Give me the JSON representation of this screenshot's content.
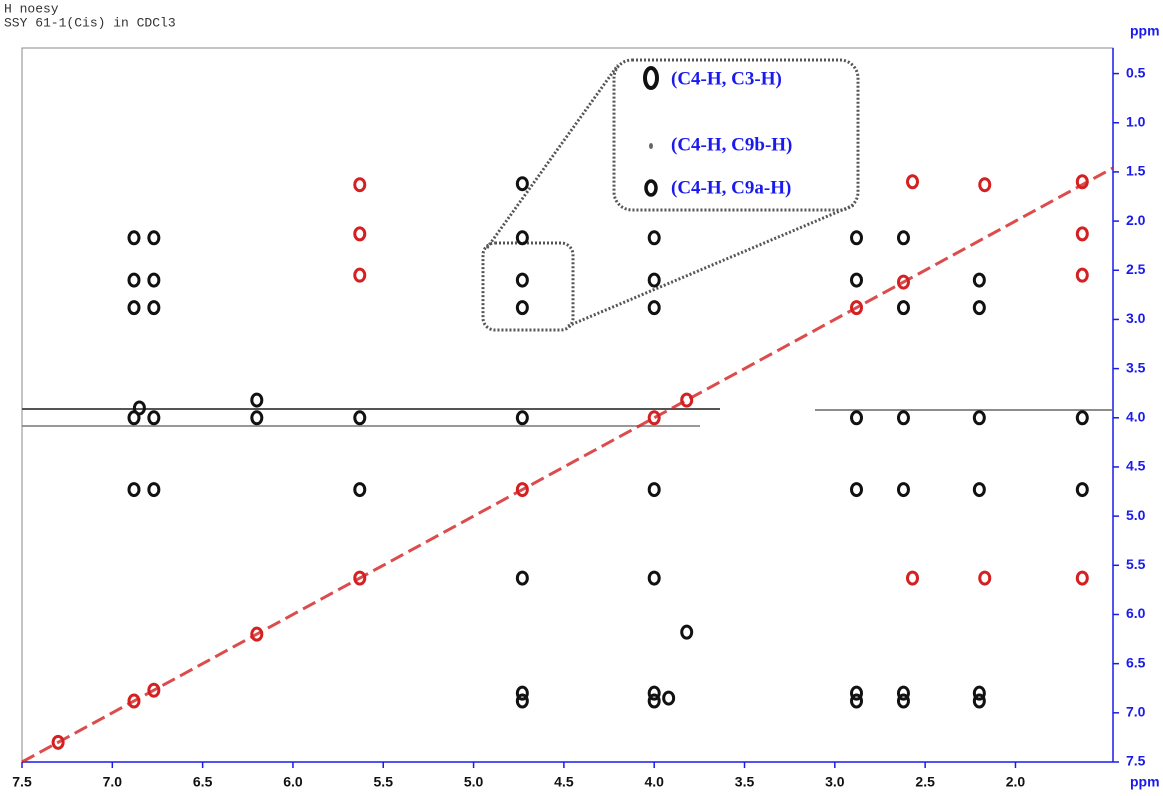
{
  "chart_data": {
    "type": "scatter",
    "header": [
      "H noesy",
      "SSY 61-1(Cis) in CDCl3"
    ],
    "x_label": "ppm",
    "y_label": "ppm",
    "xlim": [
      7.5,
      1.46
    ],
    "ylim": [
      0.24,
      7.5
    ],
    "xticks": [
      7.5,
      {
        "value": 7,
        "label": "7.0"
      },
      6.5,
      {
        "value": 6,
        "label": "6.0"
      },
      5.5,
      {
        "value": 5,
        "label": "5.0"
      },
      4.5,
      {
        "value": 4,
        "label": "4.0"
      },
      3.5,
      {
        "value": 3,
        "label": "3.0"
      },
      2.5,
      {
        "value": 2,
        "label": "2.0"
      }
    ],
    "yticks": [
      0.5,
      {
        "value": 1,
        "label": "1.0"
      },
      1.5,
      {
        "value": 2,
        "label": "2.0"
      },
      2.5,
      {
        "value": 3,
        "label": "3.0"
      },
      3.5,
      {
        "value": 4,
        "label": "4.0"
      },
      4.5,
      {
        "value": 5,
        "label": "5.0"
      },
      5.5,
      {
        "value": 6,
        "label": "6.0"
      },
      6.5,
      {
        "value": 7,
        "label": "7.0"
      },
      7.5
    ],
    "annotations": [
      "(C4-H, C3-H)",
      "(C4-H, C9b-H)",
      "(C4-H, C9a-H)"
    ],
    "series": [
      {
        "color": "#111111",
        "x": [
          6.88,
          6.77,
          6.88,
          6.77,
          6.88,
          6.77,
          6.85,
          6.88,
          6.77,
          6.88,
          6.77,
          6.2,
          6.2,
          5.63,
          5.63,
          4.73,
          4.73,
          4.73,
          4.73,
          4.73,
          4.73,
          4.73,
          4.73,
          4.0,
          4.0,
          4.0,
          4.0,
          4.0,
          4.0,
          4.0,
          3.92,
          3.82,
          2.88,
          2.88,
          2.88,
          2.88,
          2.88,
          2.88,
          2.62,
          2.62,
          2.62,
          2.62,
          2.62,
          2.62,
          2.2,
          2.2,
          2.2,
          2.2,
          2.2,
          2.2,
          1.63,
          1.63
        ],
        "y": [
          2.17,
          2.17,
          2.6,
          2.6,
          2.88,
          2.88,
          3.9,
          4.0,
          4.0,
          4.73,
          4.73,
          3.82,
          4.0,
          4.0,
          4.73,
          1.62,
          2.17,
          2.6,
          2.88,
          4.0,
          5.63,
          6.8,
          6.88,
          2.17,
          2.6,
          2.88,
          4.73,
          5.63,
          6.8,
          6.88,
          6.85,
          6.18,
          2.17,
          2.6,
          4.0,
          4.73,
          6.8,
          6.88,
          2.17,
          2.88,
          4.0,
          4.73,
          6.8,
          6.88,
          2.6,
          2.88,
          4.0,
          4.73,
          6.8,
          6.88,
          4.0,
          4.73
        ]
      },
      {
        "color": "#d42020",
        "x": [
          7.3,
          6.88,
          6.77,
          6.2,
          5.63,
          5.63,
          5.63,
          5.63,
          4.73,
          4.0,
          3.82,
          2.88,
          2.62,
          2.57,
          2.57,
          2.17,
          2.17,
          1.63,
          1.63,
          1.63,
          1.63
        ],
        "y": [
          7.3,
          6.88,
          6.77,
          6.2,
          1.63,
          2.13,
          2.55,
          5.63,
          4.73,
          4.0,
          3.82,
          2.88,
          2.62,
          1.6,
          5.63,
          1.63,
          5.63,
          1.6,
          2.13,
          2.55,
          5.63
        ]
      }
    ]
  }
}
